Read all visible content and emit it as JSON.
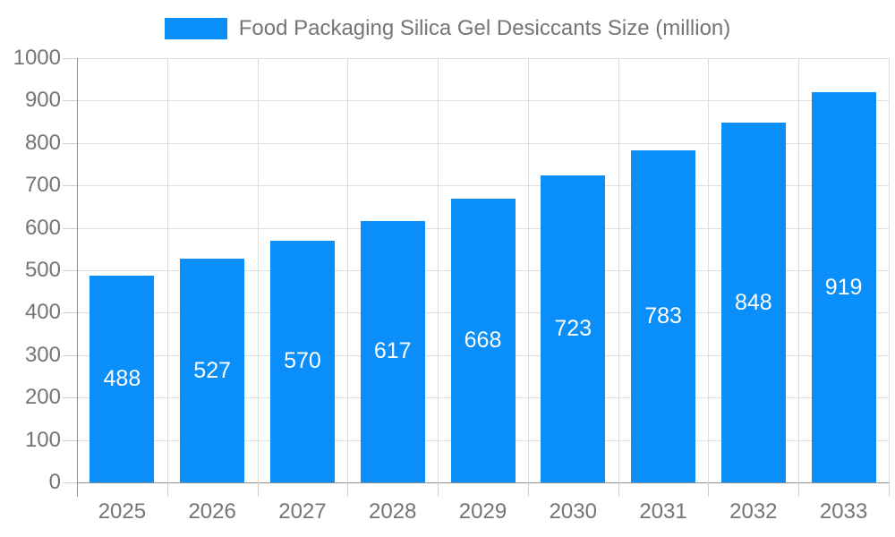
{
  "legend": {
    "label": "Food Packaging Silica Gel Desiccants Size (million)"
  },
  "chart_data": {
    "type": "bar",
    "title": "Food Packaging Silica Gel Desiccants Size (million)",
    "series_name": "Food Packaging Silica Gel Desiccants Size (million)",
    "categories": [
      "2025",
      "2026",
      "2027",
      "2028",
      "2029",
      "2030",
      "2031",
      "2032",
      "2033"
    ],
    "values": [
      488,
      527,
      570,
      617,
      668,
      723,
      783,
      848,
      919
    ],
    "xlabel": "",
    "ylabel": "",
    "ylim": [
      0,
      1000
    ],
    "yticks": [
      0,
      100,
      200,
      300,
      400,
      500,
      600,
      700,
      800,
      900,
      1000
    ],
    "grid": true,
    "legend_position": "top-center",
    "value_label_position": "inside-center",
    "colors": {
      "bar": "#0A8EFA",
      "axis_text": "#757575",
      "grid_line": "#dddddd",
      "axis_line": "#8f8f8f",
      "tick_line": "#d0d0d0",
      "value_label": "#ffffff",
      "background": "#ffffff"
    }
  }
}
